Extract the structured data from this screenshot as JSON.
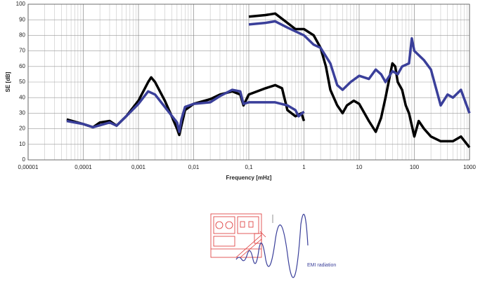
{
  "chart_data": {
    "type": "line",
    "xlabel": "Frequency [mHz]",
    "ylabel": "SE [dB]",
    "xscale": "log",
    "grid": true,
    "minor_grid": true,
    "xlim": [
      1e-05,
      1000
    ],
    "ylim": [
      0,
      100
    ],
    "xticks": [
      {
        "value": 1e-05,
        "label": "0,00001"
      },
      {
        "value": 0.0001,
        "label": "0,0001"
      },
      {
        "value": 0.001,
        "label": "0,001"
      },
      {
        "value": 0.01,
        "label": "0,01"
      },
      {
        "value": 0.1,
        "label": "0,1"
      },
      1,
      10,
      100,
      1000
    ],
    "yticks": [
      0,
      10,
      20,
      30,
      40,
      50,
      60,
      70,
      80,
      90,
      100
    ],
    "series": [
      {
        "color": "#000000",
        "x": [
          5e-05,
          0.0001,
          0.00015,
          0.0002,
          0.0003,
          0.0004,
          0.0006,
          0.001,
          0.0015,
          0.0017,
          0.002,
          0.003,
          0.004,
          0.005,
          0.0055,
          0.006,
          0.007,
          0.01,
          0.02,
          0.03,
          0.05,
          0.07,
          0.08,
          0.1,
          0.2,
          0.3,
          0.4,
          0.5,
          0.7,
          0.9,
          1,
          1,
          0.1,
          0.2,
          0.3,
          0.5,
          0.7,
          1,
          1.5,
          2,
          2.5,
          3,
          4,
          5,
          6,
          8,
          10,
          15,
          20,
          25,
          30,
          40,
          45,
          50,
          60,
          70,
          80,
          100,
          120,
          150,
          200,
          300,
          500,
          700,
          1000
        ],
        "values": [
          26,
          23,
          21,
          24,
          25,
          22,
          28,
          38,
          50,
          53,
          50,
          38,
          28,
          20,
          16,
          22,
          32,
          36,
          39,
          42,
          44,
          42,
          35,
          42,
          46,
          48,
          46,
          32,
          28,
          30,
          25,
          null,
          92,
          93,
          94,
          88,
          84,
          84,
          80,
          72,
          60,
          45,
          35,
          30,
          35,
          38,
          36,
          25,
          18,
          27,
          40,
          62,
          60,
          50,
          45,
          35,
          30,
          15,
          25,
          20,
          15,
          12,
          12,
          15,
          8
        ]
      },
      {
        "color": "#3a3f9a",
        "x": [
          5e-05,
          0.0001,
          0.00015,
          0.0003,
          0.0004,
          0.0006,
          0.001,
          0.0015,
          0.002,
          0.003,
          0.005,
          0.0055,
          0.006,
          0.007,
          0.01,
          0.02,
          0.03,
          0.05,
          0.07,
          0.08,
          0.1,
          0.3,
          0.5,
          0.7,
          0.8,
          1,
          1,
          0.1,
          0.2,
          0.3,
          0.5,
          1,
          1.5,
          2,
          3,
          4,
          5,
          7,
          10,
          15,
          20,
          25,
          30,
          40,
          50,
          60,
          80,
          90,
          100,
          150,
          200,
          300,
          400,
          500,
          700,
          1000
        ],
        "values": [
          25,
          23,
          21,
          24,
          22,
          28,
          36,
          44,
          42,
          34,
          24,
          18,
          26,
          34,
          36,
          37,
          41,
          45,
          44,
          36,
          37,
          37,
          35,
          32,
          28,
          31,
          null,
          87,
          88,
          89,
          85,
          80,
          74,
          72,
          62,
          48,
          45,
          50,
          54,
          52,
          58,
          55,
          50,
          57,
          55,
          60,
          62,
          78,
          70,
          64,
          58,
          35,
          42,
          40,
          45,
          30
        ]
      }
    ]
  },
  "illustration": {
    "caption": "EMI radiation"
  }
}
